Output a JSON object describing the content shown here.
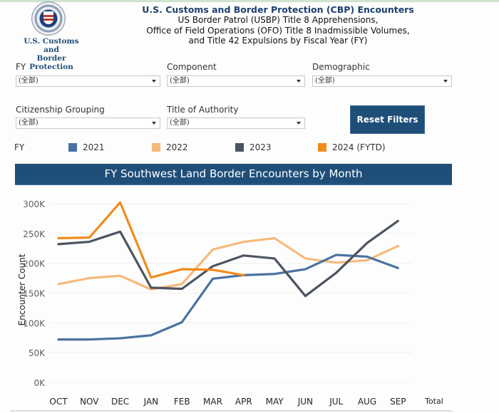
{
  "header": {
    "logo_text_line1": "U.S. Customs and",
    "logo_text_line2": "Border Protection",
    "title": "U.S. Customs and Border Protection (CBP) Encounters",
    "subtitle_lines": [
      "US Border Patrol (USBP) Title 8 Apprehensions,",
      "Office of Field Operations (OFO) Title 8 Inadmissible Volumes,",
      "and Title 42 Expulsions by Fiscal Year (FY)"
    ]
  },
  "filters": [
    {
      "label": "FY",
      "value": "(全部)"
    },
    {
      "label": "Component",
      "value": "(全部)"
    },
    {
      "label": "Demographic",
      "value": "(全部)"
    },
    {
      "label": "Citizenship Grouping",
      "value": "(全部)"
    },
    {
      "label": "Title of Authority",
      "value": "(全部)"
    }
  ],
  "reset_button": "Reset Filters",
  "legend": {
    "title": "FY",
    "items": [
      {
        "label": "2021",
        "color": "#4a72a0"
      },
      {
        "label": "2022",
        "color": "#f7b97a"
      },
      {
        "label": "2023",
        "color": "#4d5461"
      },
      {
        "label": "2024 (FYTD)",
        "color": "#f28a1c"
      }
    ]
  },
  "chart_data": {
    "type": "line",
    "title": "FY Southwest Land Border Encounters by Month",
    "xlabel": "",
    "ylabel": "Encounter Count",
    "categories": [
      "OCT",
      "NOV",
      "DEC",
      "JAN",
      "FEB",
      "MAR",
      "APR",
      "MAY",
      "JUN",
      "JUL",
      "AUG",
      "SEP"
    ],
    "extra_x_label": "Total",
    "yticks": [
      "0K",
      "50K",
      "100K",
      "150K",
      "200K",
      "250K",
      "300K"
    ],
    "ylim": [
      0,
      300000
    ],
    "grid": true,
    "legend_position": "top",
    "series": [
      {
        "name": "2021",
        "color": "#4a72a0",
        "values": [
          72000,
          72000,
          74000,
          79000,
          101000,
          174000,
          180000,
          182000,
          190000,
          214000,
          211000,
          192000
        ]
      },
      {
        "name": "2022",
        "color": "#f7b97a",
        "values": [
          165000,
          175000,
          179000,
          156000,
          165000,
          223000,
          236000,
          242000,
          208000,
          201000,
          205000,
          229000
        ]
      },
      {
        "name": "2023",
        "color": "#4d5461",
        "values": [
          232000,
          236000,
          253000,
          159000,
          157000,
          195000,
          213000,
          208000,
          145000,
          184000,
          234000,
          271000
        ]
      },
      {
        "name": "2024 (FYTD)",
        "color": "#f28a1c",
        "values": [
          242000,
          243000,
          302000,
          176000,
          190000,
          189000,
          180000
        ]
      }
    ]
  }
}
